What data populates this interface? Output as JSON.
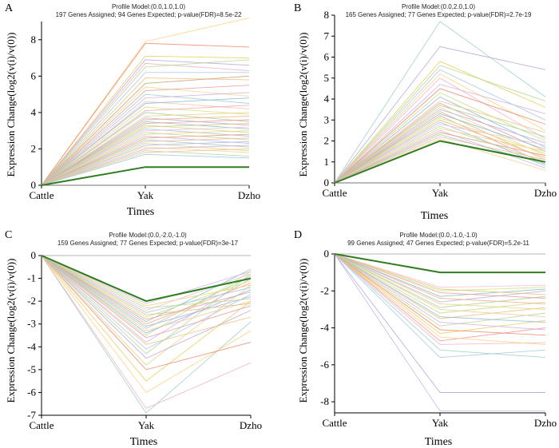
{
  "chart_data": [
    {
      "panel": "A",
      "type": "line",
      "title": "Profile Model:(0.0,1.0,1.0)",
      "subtitle": "197 Genes Assigned; 94 Genes Expected; p-value(FDR)=8.5e-22",
      "xlabel": "Times",
      "ylabel": "Expression Change(log2(v(i)/v(0))",
      "categories": [
        "Cattle",
        "Yak",
        "Dzho"
      ],
      "ylim": [
        0,
        9
      ],
      "yticks": [
        "0",
        "2",
        "4",
        "6",
        "8"
      ],
      "yticks_values": [
        0,
        2,
        4,
        6,
        8
      ],
      "model_profile": [
        0,
        1,
        1
      ],
      "model_color": "#2e7d1e",
      "baseline_color": "#9a9a9a",
      "series": [
        {
          "values": [
            0,
            7.9,
            9.2
          ],
          "color": "#ffd27f"
        },
        {
          "values": [
            0,
            7.8,
            7.6
          ],
          "color": "#f08c6e"
        },
        {
          "values": [
            0,
            7.1,
            7.0
          ],
          "color": "#e8d060"
        },
        {
          "values": [
            0,
            6.9,
            6.6
          ],
          "color": "#b9a8e0"
        },
        {
          "values": [
            0,
            6.7,
            6.3
          ],
          "color": "#f3b5c8"
        },
        {
          "values": [
            0,
            6.5,
            6.9
          ],
          "color": "#b8d990"
        },
        {
          "values": [
            0,
            6.2,
            6.2
          ],
          "color": "#a8cce8"
        },
        {
          "values": [
            0,
            5.9,
            5.8
          ],
          "color": "#f2c27a"
        },
        {
          "values": [
            0,
            5.6,
            6.0
          ],
          "color": "#c9a07e"
        },
        {
          "values": [
            0,
            5.4,
            4.9
          ],
          "color": "#e9dd8a"
        },
        {
          "values": [
            0,
            5.2,
            5.5
          ],
          "color": "#ef9aa3"
        },
        {
          "values": [
            0,
            5.0,
            4.5
          ],
          "color": "#9fd3c7"
        },
        {
          "values": [
            0,
            4.8,
            5.1
          ],
          "color": "#d6b0e6"
        },
        {
          "values": [
            0,
            4.6,
            4.2
          ],
          "color": "#f6c89f"
        },
        {
          "values": [
            0,
            4.5,
            4.8
          ],
          "color": "#94b8de"
        },
        {
          "values": [
            0,
            4.3,
            3.9
          ],
          "color": "#d3e27d"
        },
        {
          "values": [
            0,
            4.1,
            4.4
          ],
          "color": "#f4a3c0"
        },
        {
          "values": [
            0,
            4.0,
            3.5
          ],
          "color": "#a9d49a"
        },
        {
          "values": [
            0,
            3.8,
            4.0
          ],
          "color": "#ecd38a"
        },
        {
          "values": [
            0,
            3.7,
            3.3
          ],
          "color": "#b7b1e2"
        },
        {
          "values": [
            0,
            3.6,
            3.8
          ],
          "color": "#f2b38a"
        },
        {
          "values": [
            0,
            3.5,
            3.1
          ],
          "color": "#89c2c2"
        },
        {
          "values": [
            0,
            3.4,
            3.6
          ],
          "color": "#f0a0a0"
        },
        {
          "values": [
            0,
            3.3,
            2.9
          ],
          "color": "#c6df88"
        },
        {
          "values": [
            0,
            3.2,
            3.4
          ],
          "color": "#e2c07a"
        },
        {
          "values": [
            0,
            3.1,
            2.7
          ],
          "color": "#a5c4ea"
        },
        {
          "values": [
            0,
            3.0,
            3.2
          ],
          "color": "#f5c0d6"
        },
        {
          "values": [
            0,
            2.9,
            2.5
          ],
          "color": "#bedb9c"
        },
        {
          "values": [
            0,
            2.8,
            3.0
          ],
          "color": "#f3cf82"
        },
        {
          "values": [
            0,
            2.7,
            2.3
          ],
          "color": "#c8b7e8"
        },
        {
          "values": [
            0,
            2.6,
            2.8
          ],
          "color": "#e8a47c"
        },
        {
          "values": [
            0,
            2.5,
            2.1
          ],
          "color": "#9cd0b8"
        },
        {
          "values": [
            0,
            2.4,
            2.6
          ],
          "color": "#efb6a2"
        },
        {
          "values": [
            0,
            2.3,
            1.9
          ],
          "color": "#d0dc8c"
        },
        {
          "values": [
            0,
            2.2,
            2.4
          ],
          "color": "#a9bde0"
        },
        {
          "values": [
            0,
            2.1,
            1.8
          ],
          "color": "#f6d59a"
        },
        {
          "values": [
            0,
            2.0,
            2.2
          ],
          "color": "#e3a9cf"
        },
        {
          "values": [
            0,
            1.9,
            1.6
          ],
          "color": "#b5d7a4"
        },
        {
          "values": [
            0,
            1.8,
            2.0
          ],
          "color": "#f0c48e"
        },
        {
          "values": [
            0,
            1.7,
            1.5
          ],
          "color": "#9fc9dc"
        }
      ]
    },
    {
      "panel": "B",
      "type": "line",
      "title": "Profile Model:(0.0,2.0,1.0)",
      "subtitle": "165 Genes Assigned; 77 Genes Expected; p-value(FDR)=2.7e-19",
      "xlabel": "Times",
      "ylabel": "Expression Change(log2(v(i)/v(0))",
      "categories": [
        "Cattle",
        "Yak",
        "Dzho"
      ],
      "ylim": [
        0,
        8
      ],
      "yticks": [
        "0",
        "1",
        "2",
        "3",
        "4",
        "5",
        "6",
        "7",
        "8"
      ],
      "yticks_values": [
        0,
        1,
        2,
        3,
        4,
        5,
        6,
        7,
        8
      ],
      "model_profile": [
        0,
        2,
        1
      ],
      "model_color": "#2e7d1e",
      "baseline_color": "#9a9a9a",
      "series": [
        {
          "values": [
            0,
            7.7,
            4.1
          ],
          "color": "#9fd3c7"
        },
        {
          "values": [
            0,
            6.5,
            5.4
          ],
          "color": "#b9a8e0"
        },
        {
          "values": [
            0,
            5.8,
            3.6
          ],
          "color": "#e8d060"
        },
        {
          "values": [
            0,
            5.6,
            3.9
          ],
          "color": "#b8d990"
        },
        {
          "values": [
            0,
            5.4,
            3.0
          ],
          "color": "#a8cce8"
        },
        {
          "values": [
            0,
            5.2,
            2.5
          ],
          "color": "#ffd27f"
        },
        {
          "values": [
            0,
            5.0,
            2.1
          ],
          "color": "#f3b5c8"
        },
        {
          "values": [
            0,
            4.7,
            3.3
          ],
          "color": "#d6b0e6"
        },
        {
          "values": [
            0,
            4.5,
            2.8
          ],
          "color": "#f08c6e"
        },
        {
          "values": [
            0,
            4.3,
            2.0
          ],
          "color": "#c6df88"
        },
        {
          "values": [
            0,
            4.1,
            1.7
          ],
          "color": "#94b8de"
        },
        {
          "values": [
            0,
            3.9,
            2.4
          ],
          "color": "#f2c27a"
        },
        {
          "values": [
            0,
            3.8,
            1.5
          ],
          "color": "#ef9aa3"
        },
        {
          "values": [
            0,
            3.7,
            2.2
          ],
          "color": "#a9d49a"
        },
        {
          "values": [
            0,
            3.6,
            1.3
          ],
          "color": "#ecd38a"
        },
        {
          "values": [
            0,
            3.5,
            1.9
          ],
          "color": "#b7b1e2"
        },
        {
          "values": [
            0,
            3.4,
            1.1
          ],
          "color": "#f2b38a"
        },
        {
          "values": [
            0,
            3.3,
            1.6
          ],
          "color": "#89c2c2"
        },
        {
          "values": [
            0,
            3.2,
            0.9
          ],
          "color": "#f0a0a0"
        },
        {
          "values": [
            0,
            3.1,
            1.4
          ],
          "color": "#d3e27d"
        },
        {
          "values": [
            0,
            3.0,
            1.2
          ],
          "color": "#e2c07a"
        },
        {
          "values": [
            0,
            2.9,
            0.8
          ],
          "color": "#a5c4ea"
        },
        {
          "values": [
            0,
            2.8,
            1.8
          ],
          "color": "#f5c0d6"
        },
        {
          "values": [
            0,
            2.7,
            1.0
          ],
          "color": "#bedb9c"
        },
        {
          "values": [
            0,
            2.6,
            1.5
          ],
          "color": "#f3cf82"
        },
        {
          "values": [
            0,
            2.5,
            0.7
          ],
          "color": "#c8b7e8"
        },
        {
          "values": [
            0,
            2.4,
            1.3
          ],
          "color": "#e8a47c"
        },
        {
          "values": [
            0,
            2.3,
            0.9
          ],
          "color": "#9cd0b8"
        },
        {
          "values": [
            0,
            2.2,
            1.1
          ],
          "color": "#efb6a2"
        },
        {
          "values": [
            0,
            2.1,
            0.6
          ],
          "color": "#f6d59a"
        }
      ]
    },
    {
      "panel": "C",
      "type": "line",
      "title": "Profile Model:(0.0,-2.0,-1.0)",
      "subtitle": "159 Genes Assigned; 77 Genes Expected; p-value(FDR)=3e-17",
      "xlabel": "Times",
      "ylabel": "Expression Change(log2(v(i)/v(0))",
      "categories": [
        "Cattle",
        "Yak",
        "Dzho"
      ],
      "ylim": [
        -7,
        0
      ],
      "yticks": [
        "0",
        "-1",
        "-2",
        "-3",
        "-4",
        "-5",
        "-6",
        "-7"
      ],
      "yticks_values": [
        0,
        -1,
        -2,
        -3,
        -4,
        -5,
        -6,
        -7
      ],
      "model_profile": [
        0,
        -2,
        -1
      ],
      "model_color": "#2e7d1e",
      "baseline_color": "#9a9a9a",
      "series": [
        {
          "values": [
            0,
            -6.9,
            -2.9
          ],
          "color": "#9fd3c7"
        },
        {
          "values": [
            0,
            -6.7,
            -4.7
          ],
          "color": "#f3b5c8"
        },
        {
          "values": [
            0,
            -6.0,
            -3.3
          ],
          "color": "#ffd27f"
        },
        {
          "values": [
            0,
            -5.5,
            -2.0
          ],
          "color": "#e8d060"
        },
        {
          "values": [
            0,
            -5.0,
            -3.8
          ],
          "color": "#f08c6e"
        },
        {
          "values": [
            0,
            -4.8,
            -1.3
          ],
          "color": "#ecd38a"
        },
        {
          "values": [
            0,
            -4.5,
            -2.4
          ],
          "color": "#b9a8e0"
        },
        {
          "values": [
            0,
            -4.3,
            -0.8
          ],
          "color": "#b8d990"
        },
        {
          "values": [
            0,
            -4.1,
            -1.7
          ],
          "color": "#a8cce8"
        },
        {
          "values": [
            0,
            -3.9,
            -2.7
          ],
          "color": "#f2c27a"
        },
        {
          "values": [
            0,
            -3.8,
            -1.0
          ],
          "color": "#d6b0e6"
        },
        {
          "values": [
            0,
            -3.6,
            -2.2
          ],
          "color": "#ef9aa3"
        },
        {
          "values": [
            0,
            -3.5,
            -0.7
          ],
          "color": "#c6df88"
        },
        {
          "values": [
            0,
            -3.4,
            -1.5
          ],
          "color": "#94b8de"
        },
        {
          "values": [
            0,
            -3.3,
            -2.0
          ],
          "color": "#f6c89f"
        },
        {
          "values": [
            0,
            -3.2,
            -0.9
          ],
          "color": "#a9d49a"
        },
        {
          "values": [
            0,
            -3.1,
            -1.8
          ],
          "color": "#b7b1e2"
        },
        {
          "values": [
            0,
            -3.0,
            -1.2
          ],
          "color": "#f2b38a"
        },
        {
          "values": [
            0,
            -2.9,
            -0.6
          ],
          "color": "#89c2c2"
        },
        {
          "values": [
            0,
            -2.8,
            -1.6
          ],
          "color": "#f0a0a0"
        },
        {
          "values": [
            0,
            -2.7,
            -1.1
          ],
          "color": "#d3e27d"
        },
        {
          "values": [
            0,
            -2.6,
            -2.1
          ],
          "color": "#e2c07a"
        },
        {
          "values": [
            0,
            -2.5,
            -1.4
          ],
          "color": "#a5c4ea"
        },
        {
          "values": [
            0,
            -2.4,
            -0.8
          ],
          "color": "#f5c0d6"
        },
        {
          "values": [
            0,
            -2.3,
            -1.9
          ],
          "color": "#bedb9c"
        },
        {
          "values": [
            0,
            -2.2,
            -1.3
          ],
          "color": "#f3cf82"
        },
        {
          "values": [
            0,
            -2.1,
            -0.7
          ],
          "color": "#c8b7e8"
        }
      ]
    },
    {
      "panel": "D",
      "type": "line",
      "title": "Profile Model:(0.0,-1.0,-1.0)",
      "subtitle": "99 Genes Assigned; 47 Genes Expected; p-value(FDR)=5.2e-11",
      "xlabel": "Times",
      "ylabel": "Expression Change(log2(v(i)/v(0))",
      "categories": [
        "Cattle",
        "Yak",
        "Dzho"
      ],
      "ylim": [
        -8.6,
        0
      ],
      "yticks": [
        "0",
        "-2",
        "-4",
        "-6",
        "-8"
      ],
      "yticks_values": [
        0,
        -2,
        -4,
        -6,
        -8
      ],
      "model_profile": [
        0,
        -1,
        -1
      ],
      "model_color": "#2e7d1e",
      "baseline_color": "#9a9a9a",
      "series": [
        {
          "values": [
            0,
            -8.5,
            -8.5
          ],
          "color": "#c8b7e8"
        },
        {
          "values": [
            0,
            -7.5,
            -7.5
          ],
          "color": "#b9a8e0"
        },
        {
          "values": [
            0,
            -5.6,
            -5.2
          ],
          "color": "#a8cce8"
        },
        {
          "values": [
            0,
            -5.2,
            -5.6
          ],
          "color": "#9fd3c7"
        },
        {
          "values": [
            0,
            -4.9,
            -4.8
          ],
          "color": "#f3b5c8"
        },
        {
          "values": [
            0,
            -4.7,
            -4.0
          ],
          "color": "#ef9aa3"
        },
        {
          "values": [
            0,
            -4.5,
            -4.9
          ],
          "color": "#ffd27f"
        },
        {
          "values": [
            0,
            -4.3,
            -3.6
          ],
          "color": "#e8d060"
        },
        {
          "values": [
            0,
            -4.1,
            -4.4
          ],
          "color": "#f08c6e"
        },
        {
          "values": [
            0,
            -3.9,
            -3.2
          ],
          "color": "#b8d990"
        },
        {
          "values": [
            0,
            -3.7,
            -4.1
          ],
          "color": "#d6b0e6"
        },
        {
          "values": [
            0,
            -3.5,
            -2.9
          ],
          "color": "#f2c27a"
        },
        {
          "values": [
            0,
            -3.4,
            -3.7
          ],
          "color": "#94b8de"
        },
        {
          "values": [
            0,
            -3.2,
            -2.6
          ],
          "color": "#c6df88"
        },
        {
          "values": [
            0,
            -3.0,
            -3.4
          ],
          "color": "#f6c89f"
        },
        {
          "values": [
            0,
            -2.9,
            -2.3
          ],
          "color": "#a9d49a"
        },
        {
          "values": [
            0,
            -2.7,
            -3.0
          ],
          "color": "#ecd38a"
        },
        {
          "values": [
            0,
            -2.6,
            -2.0
          ],
          "color": "#b7b1e2"
        },
        {
          "values": [
            0,
            -2.4,
            -2.7
          ],
          "color": "#f2b38a"
        },
        {
          "values": [
            0,
            -2.3,
            -1.9
          ],
          "color": "#89c2c2"
        },
        {
          "values": [
            0,
            -2.1,
            -2.4
          ],
          "color": "#f0a0a0"
        },
        {
          "values": [
            0,
            -2.0,
            -1.8
          ],
          "color": "#d3e27d"
        },
        {
          "values": [
            0,
            -1.9,
            -2.2
          ],
          "color": "#e2c07a"
        },
        {
          "values": [
            0,
            -1.8,
            -1.7
          ],
          "color": "#f5c0d6"
        }
      ]
    }
  ]
}
